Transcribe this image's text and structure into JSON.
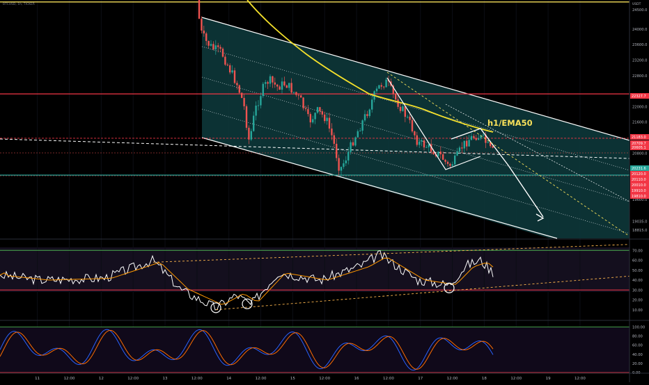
{
  "header": {
    "symbol_line": "BTCUSD, 1h, TICKER"
  },
  "axis": {
    "currency": "USDT"
  },
  "chart_data": [
    {
      "type": "candlestick",
      "panel": "price",
      "ylim": [
        18600,
        24750
      ],
      "price_ticks": [
        {
          "label": "24500.0",
          "value": 24500
        },
        {
          "label": "24000.0",
          "value": 24000
        },
        {
          "label": "23600.0",
          "value": 23600
        },
        {
          "label": "23200.0",
          "value": 23200
        },
        {
          "label": "22800.0",
          "value": 22800
        },
        {
          "label": "22000.0",
          "value": 22000
        },
        {
          "label": "21600.0",
          "value": 21600
        },
        {
          "label": "20800.0",
          "value": 20800
        },
        {
          "label": "19910.0",
          "value": 19910
        },
        {
          "label": "19600.0",
          "value": 19600
        },
        {
          "label": "19035.0",
          "value": 19035
        },
        {
          "label": "18815.0",
          "value": 18815
        }
      ],
      "price_tags": [
        {
          "label": "22327.7",
          "value": 22327.7,
          "color": "#f23645"
        },
        {
          "label": "21183.0",
          "value": 21183.0,
          "color": "#f23645"
        },
        {
          "label": "20709.7",
          "value": 20709.7,
          "color": "#f23645"
        },
        {
          "label": "20605.1",
          "value": 20605.1,
          "color": "#f23645"
        },
        {
          "label": "20231.6",
          "value": 20231.6,
          "color": "#26a69a"
        },
        {
          "label": "20120.0",
          "value": 20120.0,
          "color": "#f23645"
        },
        {
          "label": "20110.0",
          "value": 20110.0,
          "color": "#f23645"
        },
        {
          "label": "20010.0",
          "value": 20010.0,
          "color": "#f23645"
        },
        {
          "label": "19910.0",
          "value": 19910.0,
          "color": "#f23645"
        },
        {
          "label": "19810.0",
          "value": 19810.0,
          "color": "#f23645"
        }
      ],
      "horizontal_levels": [
        {
          "value": 24700,
          "color": "#f7e05a"
        },
        {
          "value": 22327.7,
          "color": "#f23645"
        },
        {
          "value": 21183.0,
          "color": "#f23645",
          "dashed": true
        },
        {
          "value": 20231.6,
          "color": "#26a69a"
        }
      ],
      "annotation": "h1/EMA50"
    },
    {
      "type": "line",
      "panel": "rsi",
      "ylim": [
        0,
        80
      ],
      "ticks": [
        {
          "label": "70.00",
          "value": 70
        },
        {
          "label": "60.00",
          "value": 60
        },
        {
          "label": "50.00",
          "value": 50
        },
        {
          "label": "40.00",
          "value": 40
        },
        {
          "label": "30.00",
          "value": 30
        },
        {
          "label": "20.00",
          "value": 20
        },
        {
          "label": "10.00",
          "value": 10
        }
      ],
      "levels": [
        70,
        30
      ]
    },
    {
      "type": "line",
      "panel": "stochastic",
      "ylim": [
        0,
        110
      ],
      "ticks": [
        {
          "label": "100.00",
          "value": 100
        },
        {
          "label": "80.00",
          "value": 80
        },
        {
          "label": "60.00",
          "value": 60
        },
        {
          "label": "40.00",
          "value": 40
        },
        {
          "label": "20.00",
          "value": 20
        },
        {
          "label": "0.00",
          "value": 0
        }
      ],
      "levels": [
        100,
        0
      ]
    }
  ],
  "time_axis": [
    {
      "label": "11",
      "t": 13
    },
    {
      "label": "12:00",
      "t": 25
    },
    {
      "label": "12",
      "t": 37
    },
    {
      "label": "12:00",
      "t": 49
    },
    {
      "label": "13",
      "t": 61
    },
    {
      "label": "12:00",
      "t": 73
    },
    {
      "label": "14",
      "t": 85
    },
    {
      "label": "12:00",
      "t": 97
    },
    {
      "label": "15",
      "t": 109
    },
    {
      "label": "12:00",
      "t": 121
    },
    {
      "label": "16",
      "t": 133
    },
    {
      "label": "12:00",
      "t": 145
    },
    {
      "label": "17",
      "t": 157
    },
    {
      "label": "12:00",
      "t": 169
    },
    {
      "label": "18",
      "t": 181
    },
    {
      "label": "12:00",
      "t": 193
    },
    {
      "label": "19",
      "t": 205
    },
    {
      "label": "12:00",
      "t": 217
    }
  ],
  "colors": {
    "up": "#26a69a",
    "down": "#ef5350",
    "channel_fill": "#0e3b3d",
    "ema": "#f5e12b",
    "rsi": "#ffffff",
    "rsi_ma": "#ff9800",
    "stoch_k": "#2962ff",
    "stoch_d": "#ff6d00",
    "bg": "#000000",
    "axis_text": "#b2b5be"
  }
}
